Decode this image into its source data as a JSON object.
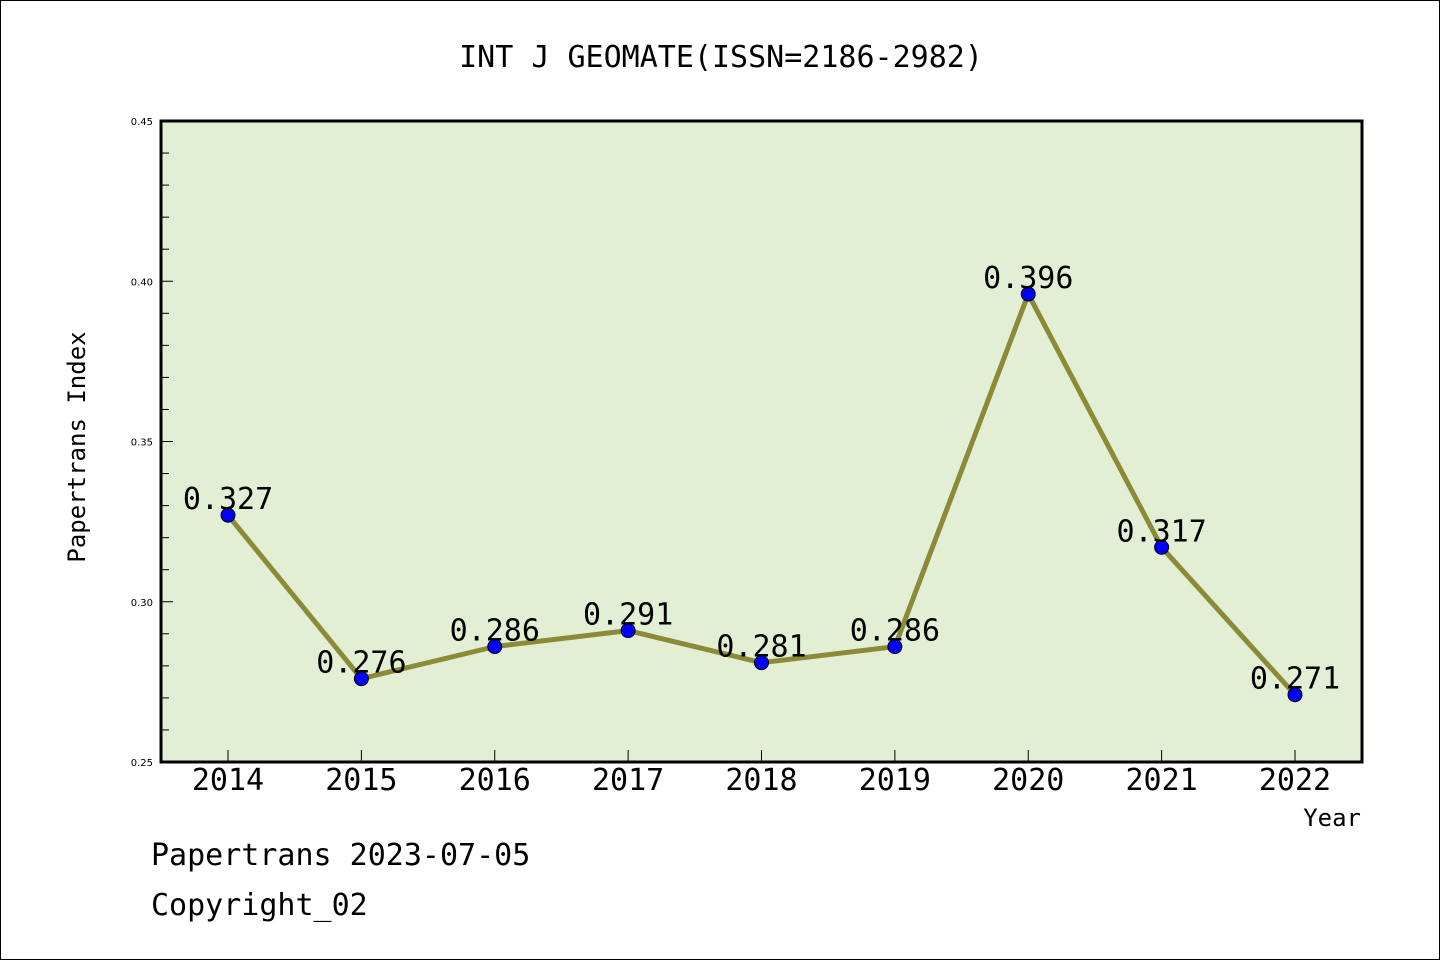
{
  "chart_data": {
    "type": "line",
    "title": "INT J GEOMATE(ISSN=2186-2982)",
    "xlabel": "Year",
    "ylabel": "Papertrans Index",
    "categories": [
      "2014",
      "2015",
      "2016",
      "2017",
      "2018",
      "2019",
      "2020",
      "2021",
      "2022"
    ],
    "series": [
      {
        "values": [
          0.327,
          0.276,
          0.286,
          0.291,
          0.281,
          0.286,
          0.396,
          0.317,
          0.271
        ]
      }
    ],
    "data_labels": [
      "0.327",
      "0.276",
      "0.286",
      "0.291",
      "0.281",
      "0.286",
      "0.396",
      "0.317",
      "0.271"
    ],
    "ylim": [
      0.25,
      0.45
    ],
    "y_ticks": [
      "0.25",
      "0.30",
      "0.35",
      "0.40",
      "0.45"
    ],
    "grid": false,
    "colors": {
      "plot_background": "#e2efd5",
      "line": "#8c8a36",
      "marker": "#0000ff"
    }
  },
  "footer": {
    "line1": "Papertrans 2023-07-05",
    "line2": "Copyright_02"
  }
}
